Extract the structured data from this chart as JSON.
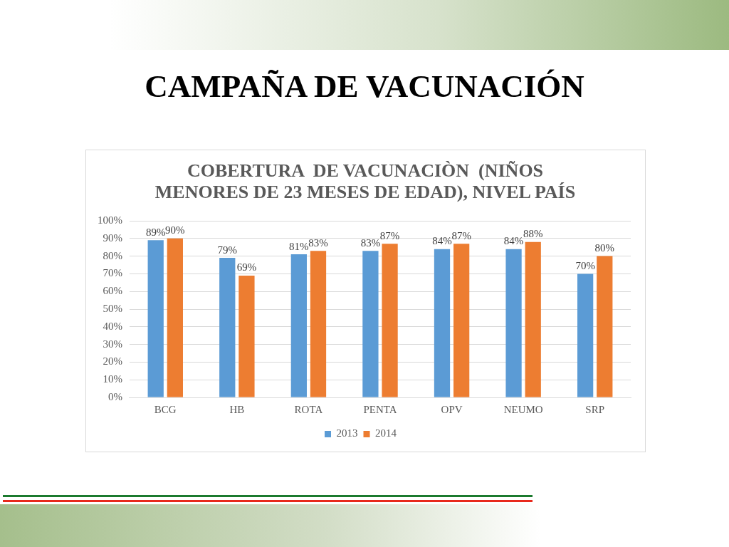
{
  "chart_data": {
    "type": "bar",
    "title": "CAMPAÑA DE VACUNACIÓN",
    "subtitle": "COBERTURA  DE VACUNACIÒN  (NIÑOS MENORES DE 23 MESES DE EDAD), NIVEL PAÍS",
    "categories": [
      "BCG",
      "HB",
      "ROTA",
      "PENTA",
      "OPV",
      "NEUMO",
      "SRP"
    ],
    "series": [
      {
        "name": "2013",
        "color": "#5b9bd5",
        "values": [
          89,
          79,
          81,
          83,
          84,
          84,
          70
        ],
        "value_labels": [
          "89%",
          "79%",
          "81%",
          "83%",
          "84%",
          "84%",
          "70%"
        ]
      },
      {
        "name": "2014",
        "color": "#ed7d31",
        "values": [
          90,
          69,
          83,
          87,
          87,
          88,
          80
        ],
        "value_labels": [
          "90%",
          "69%",
          "83%",
          "87%",
          "87%",
          "88%",
          "80%"
        ]
      }
    ],
    "ylim": [
      0,
      100
    ],
    "yticks": [
      {
        "value": 0,
        "label": "0%"
      },
      {
        "value": 10,
        "label": "10%"
      },
      {
        "value": 20,
        "label": "20%"
      },
      {
        "value": 30,
        "label": "30%"
      },
      {
        "value": 40,
        "label": "40%"
      },
      {
        "value": 50,
        "label": "50%"
      },
      {
        "value": 60,
        "label": "60%"
      },
      {
        "value": 70,
        "label": "70%"
      },
      {
        "value": 80,
        "label": "80%"
      },
      {
        "value": 90,
        "label": "90%"
      },
      {
        "value": 100,
        "label": "100%"
      }
    ],
    "grid": "y",
    "legend": "bottom"
  }
}
